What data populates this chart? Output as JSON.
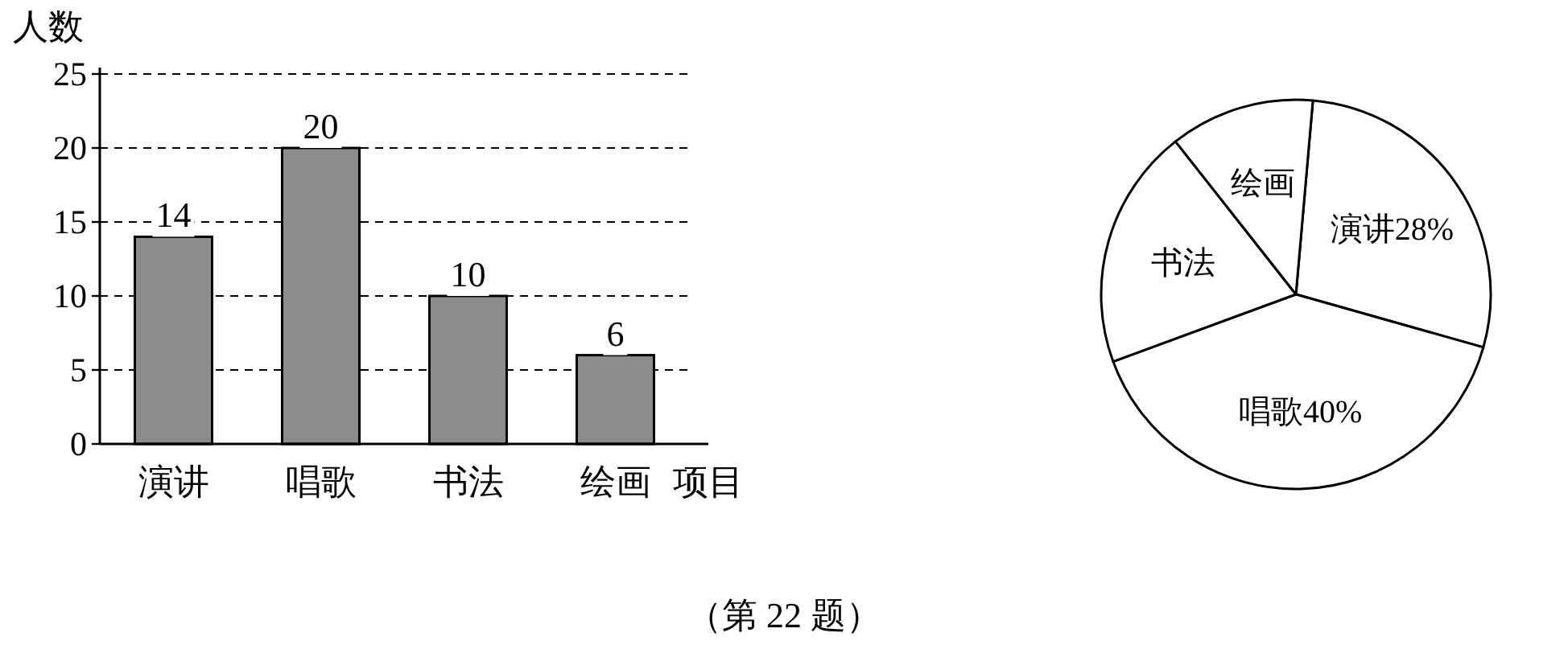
{
  "chart_data": [
    {
      "type": "bar",
      "ylabel": "人数",
      "xlabel": "项目",
      "categories": [
        "演讲",
        "唱歌",
        "书法",
        "绘画"
      ],
      "values": [
        14,
        20,
        10,
        6
      ],
      "color": "#8c8c8c",
      "ylim": [
        0,
        25
      ],
      "yticks": [
        0,
        5,
        10,
        15,
        20,
        25
      ],
      "grid": "y",
      "data_labels": true,
      "annotations": [
        "（第 22 题）"
      ]
    },
    {
      "type": "pie",
      "categories": [
        "演讲",
        "唱歌",
        "书法",
        "绘画"
      ],
      "values": [
        28,
        40,
        20,
        12
      ],
      "value_labels": [
        "28%",
        "40%",
        null,
        null
      ],
      "colors": [
        "#ffffff",
        "#ffffff",
        "#ffffff",
        "#ffffff"
      ]
    }
  ]
}
